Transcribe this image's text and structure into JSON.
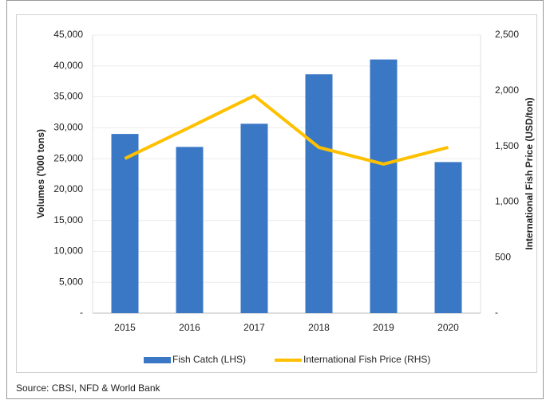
{
  "chart_data": {
    "type": "bar_line",
    "categories": [
      "2015",
      "2016",
      "2017",
      "2018",
      "2019",
      "2020"
    ],
    "series": [
      {
        "name": "Fish Catch (LHS)",
        "color": "#3a78c6",
        "type": "bar",
        "axis": "y",
        "values": [
          29000,
          26900,
          30650,
          38650,
          41050,
          24450
        ]
      },
      {
        "name": "International Fish Price (RHS)",
        "color": "#ffc000",
        "type": "line",
        "axis": "y2",
        "values": [
          1390,
          1670,
          1955,
          1490,
          1340,
          1490
        ]
      }
    ],
    "ylabel": "Volumes ('000 tons)",
    "y2label": "International Fish Price (USD/ton)",
    "ylim": [
      0,
      45000
    ],
    "yticks": [
      {
        "value": 0,
        "label": "-"
      },
      {
        "value": 5000,
        "label": "5,000"
      },
      {
        "value": 10000,
        "label": "10,000"
      },
      {
        "value": 15000,
        "label": "15,000"
      },
      {
        "value": 20000,
        "label": "20,000"
      },
      {
        "value": 25000,
        "label": "25,000"
      },
      {
        "value": 30000,
        "label": "30,000"
      },
      {
        "value": 35000,
        "label": "35,000"
      },
      {
        "value": 40000,
        "label": "40,000"
      },
      {
        "value": 45000,
        "label": "45,000"
      }
    ],
    "y2lim": [
      0,
      2500
    ],
    "y2ticks": [
      {
        "value": 0,
        "label": "-"
      },
      500,
      {
        "value": 1000,
        "label": "1,000"
      },
      {
        "value": 1500,
        "label": "1,500"
      },
      {
        "value": 2000,
        "label": "2,000"
      },
      {
        "value": 2500,
        "label": "2,500"
      }
    ],
    "grid": true,
    "legend": "bottom",
    "source": "Source: CBSI, NFD & World Bank"
  }
}
